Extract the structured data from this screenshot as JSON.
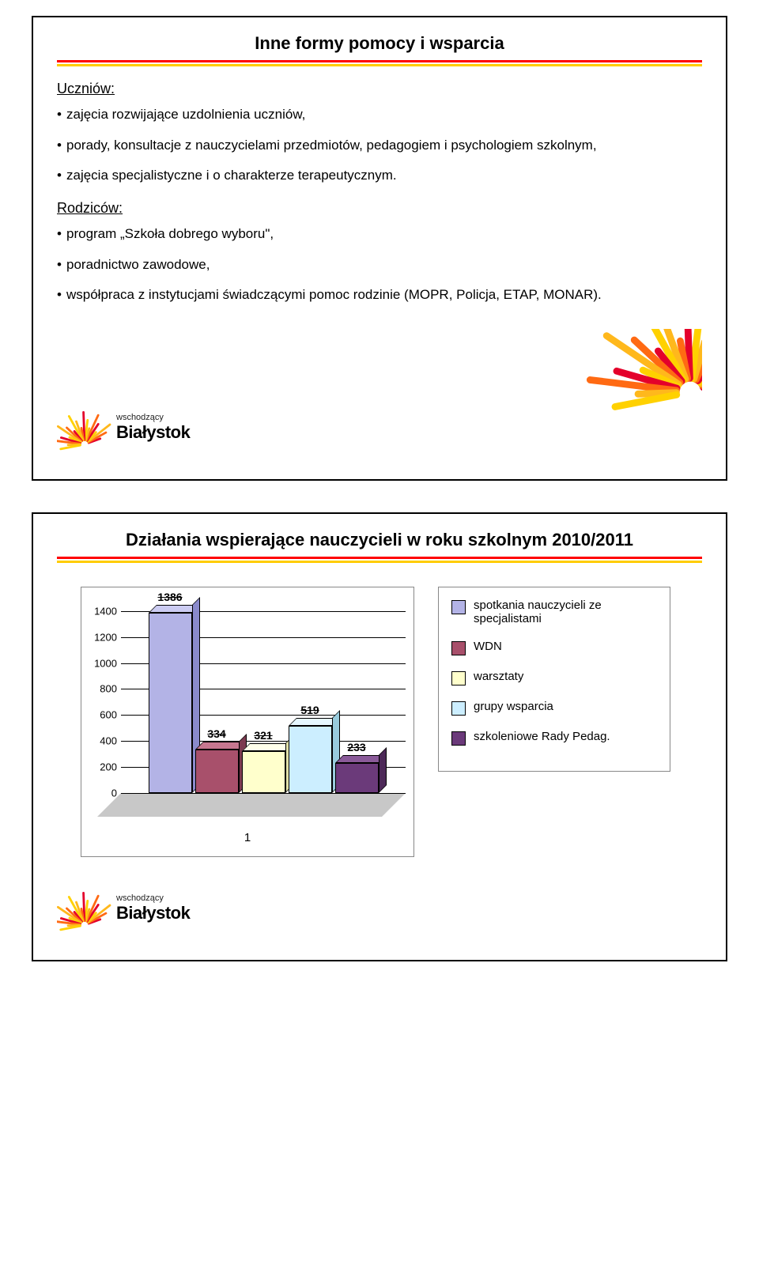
{
  "slide1": {
    "title": "Inne formy pomocy i wsparcia",
    "section1_head": "Uczniów:",
    "section1_items": [
      "zajęcia rozwijające uzdolnienia uczniów,",
      "porady, konsultacje z nauczycielami przedmiotów, pedagogiem i psychologiem szkolnym,",
      "zajęcia specjalistyczne i o charakterze terapeutycznym."
    ],
    "section2_head": "Rodziców:",
    "section2_items": [
      "program „Szkoła dobrego wyboru\",",
      "poradnictwo zawodowe,",
      "współpraca z instytucjami świadczącymi pomoc rodzinie (MOPR, Policja, ETAP, MONAR)."
    ]
  },
  "slide2": {
    "title": "Działania wspierające nauczycieli w roku szkolnym 2010/2011"
  },
  "brand_small": "wschodzący",
  "brand_big": "Białystok",
  "chart": {
    "type": "bar",
    "ylim": [
      0,
      1400
    ],
    "ytick_step": 200,
    "yticks": [
      0,
      200,
      400,
      600,
      800,
      1000,
      1200,
      1400
    ],
    "x_category": "1",
    "bars": [
      {
        "label": "1386",
        "value": 1386,
        "color": "#b3b3e6",
        "top": "#ccccf2",
        "side": "#8a8acc"
      },
      {
        "label": "334",
        "value": 334,
        "color": "#a8506b",
        "top": "#c77790",
        "side": "#7c3a50"
      },
      {
        "label": "321",
        "value": 321,
        "color": "#ffffcc",
        "top": "#ffffeb",
        "side": "#e0e0a8"
      },
      {
        "label": "519",
        "value": 519,
        "color": "#cceeff",
        "top": "#e6f7ff",
        "side": "#99ccdd"
      },
      {
        "label": "233",
        "value": 233,
        "color": "#6b3a7a",
        "top": "#8a5a99",
        "side": "#4d2958"
      }
    ],
    "legend": [
      {
        "color": "#b3b3e6",
        "label": "spotkania nauczycieli ze specjalistami"
      },
      {
        "color": "#a8506b",
        "label": "WDN"
      },
      {
        "color": "#ffffcc",
        "label": "warsztaty"
      },
      {
        "color": "#cceeff",
        "label": "grupy wsparcia"
      },
      {
        "color": "#6b3a7a",
        "label": "szkoleniowe Rady Pedag."
      }
    ],
    "label_fontsize": 14,
    "grid_color": "#000000",
    "background_color": "#ffffff"
  }
}
